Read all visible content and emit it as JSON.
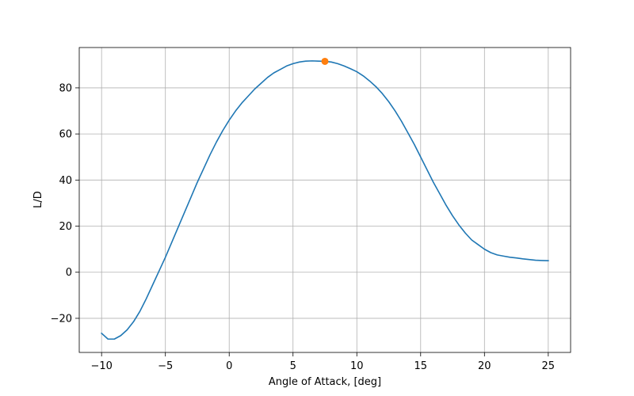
{
  "chart_data": {
    "type": "line",
    "title": "",
    "xlabel": "Angle of Attack, [deg]",
    "ylabel": "L/D",
    "xlim": [
      -11.75,
      26.75
    ],
    "ylim": [
      -34.8,
      97.5
    ],
    "xticks": [
      -10,
      -5,
      0,
      5,
      10,
      15,
      20,
      25
    ],
    "yticks": [
      -20,
      0,
      20,
      40,
      60,
      80
    ],
    "xtick_labels": [
      "−10",
      "−5",
      "0",
      "5",
      "10",
      "15",
      "20",
      "25"
    ],
    "ytick_labels": [
      "−20",
      "0",
      "20",
      "40",
      "60",
      "80"
    ],
    "grid": true,
    "series": [
      {
        "color": "#1f77b4",
        "x": [
          -10,
          -9.5,
          -9,
          -8.5,
          -8,
          -7.5,
          -7,
          -6.5,
          -6,
          -5.5,
          -5,
          -4.5,
          -4,
          -3.5,
          -3,
          -2.5,
          -2,
          -1.5,
          -1,
          -0.5,
          0,
          0.5,
          1,
          1.5,
          2,
          2.5,
          3,
          3.5,
          4,
          4.5,
          5,
          5.5,
          6,
          6.5,
          7,
          7.5,
          8,
          8.5,
          9,
          9.5,
          10,
          10.5,
          11,
          11.5,
          12,
          12.5,
          13,
          13.5,
          14,
          14.5,
          15,
          15.5,
          16,
          16.5,
          17,
          17.5,
          18,
          18.5,
          19,
          19.5,
          20,
          20.5,
          21,
          21.5,
          22,
          22.5,
          23,
          23.5,
          24,
          24.5,
          25
        ],
        "y": [
          -26.5,
          -29,
          -29,
          -27.5,
          -25,
          -21.5,
          -17,
          -11.5,
          -5.5,
          0.5,
          6.5,
          13,
          19.5,
          26,
          32.5,
          39,
          45,
          51,
          56.5,
          61.5,
          66,
          70,
          73.5,
          76.5,
          79.5,
          82,
          84.5,
          86.5,
          88,
          89.5,
          90.5,
          91.2,
          91.6,
          91.7,
          91.6,
          91.5,
          91.2,
          90.5,
          89.5,
          88.3,
          87,
          85.2,
          83,
          80.5,
          77.5,
          74,
          70,
          65.5,
          60.5,
          55.5,
          50,
          44.5,
          39,
          34,
          29,
          24.5,
          20.5,
          17,
          14,
          12,
          10,
          8.5,
          7.5,
          7,
          6.5,
          6.2,
          5.8,
          5.5,
          5.2,
          5.1,
          5
        ]
      }
    ],
    "highlight_point": {
      "color": "#ff7f0e",
      "x": 7.5,
      "y": 91.5
    }
  }
}
